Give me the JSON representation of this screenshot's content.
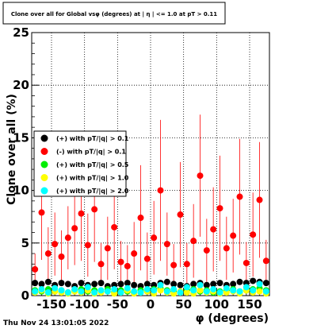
{
  "title": "Clone  over all for Global vsφ (degrees) at | η | <= 1.0 at pT > 0.11",
  "timestamp": "Thu Nov 24 13:01:05 2022",
  "chart_data": {
    "type": "scatter",
    "title": "Clone  over all for Global vsφ (degrees) at | η | <= 1.0 at pT > 0.11",
    "xlabel": "φ (degrees)",
    "ylabel": "Clone  over all (%)",
    "xlim": [
      -180,
      180
    ],
    "ylim": [
      0,
      25
    ],
    "xticks": [
      -150,
      -100,
      -50,
      0,
      50,
      100,
      150
    ],
    "yticks": [
      0,
      5,
      10,
      15,
      20,
      25
    ],
    "grid": true,
    "legend_position": "left-middle",
    "series": [
      {
        "name": "(+) with pT/|q| > 0.1",
        "color": "#000000",
        "x": [
          -175,
          -165,
          -155,
          -145,
          -135,
          -125,
          -115,
          -105,
          -95,
          -85,
          -75,
          -65,
          -55,
          -45,
          -35,
          -25,
          -15,
          -5,
          5,
          15,
          25,
          35,
          45,
          55,
          65,
          75,
          85,
          95,
          105,
          115,
          125,
          135,
          145,
          155,
          165,
          175
        ],
        "y": [
          1.2,
          1.1,
          1.3,
          1.0,
          1.2,
          1.1,
          0.9,
          1.2,
          1.0,
          1.1,
          1.2,
          0.9,
          1.0,
          1.1,
          1.2,
          1.0,
          0.9,
          1.1,
          1.0,
          1.2,
          1.3,
          1.1,
          1.0,
          0.9,
          1.1,
          1.2,
          1.0,
          1.1,
          1.2,
          1.0,
          1.1,
          1.3,
          1.2,
          1.4,
          1.3,
          1.2
        ]
      },
      {
        "name": "(-) with pT/|q| > 0.1",
        "color": "#ff0000",
        "x": [
          -175,
          -165,
          -155,
          -145,
          -135,
          -125,
          -115,
          -105,
          -95,
          -85,
          -75,
          -65,
          -55,
          -45,
          -35,
          -25,
          -15,
          -5,
          5,
          15,
          25,
          35,
          45,
          55,
          65,
          75,
          85,
          95,
          105,
          115,
          125,
          135,
          145,
          155,
          165,
          175
        ],
        "y": [
          2.5,
          7.9,
          4.0,
          4.9,
          3.7,
          5.5,
          6.4,
          7.8,
          4.8,
          8.2,
          3.0,
          4.5,
          6.5,
          3.2,
          2.8,
          4.0,
          7.4,
          3.5,
          5.5,
          10.0,
          4.9,
          2.9,
          7.7,
          3.0,
          5.2,
          11.4,
          4.3,
          6.3,
          8.3,
          4.5,
          5.7,
          9.4,
          3.1,
          5.8,
          9.1,
          3.3
        ]
      },
      {
        "name": "(+) with pT/|q| > 0.5",
        "color": "#00ee00",
        "x": [
          -175,
          -165,
          -155,
          -145,
          -135,
          -125,
          -115,
          -105,
          -95,
          -85,
          -75,
          -65,
          -55,
          -45,
          -35,
          -25,
          -15,
          -5,
          5,
          15,
          25,
          35,
          45,
          55,
          65,
          75,
          85,
          95,
          105,
          115,
          125,
          135,
          145,
          155,
          165,
          175
        ],
        "y": [
          0.5,
          0.4,
          0.6,
          0.4,
          0.5,
          0.3,
          0.5,
          0.6,
          0.4,
          0.5,
          0.4,
          0.6,
          0.3,
          0.5,
          0.4,
          0.3,
          0.5,
          0.4,
          0.6,
          0.7,
          0.5,
          0.4,
          0.3,
          0.5,
          0.6,
          0.4,
          0.5,
          0.3,
          0.4,
          0.5,
          0.6,
          0.4,
          0.5,
          0.6,
          0.7,
          0.5
        ]
      },
      {
        "name": "(+) with pT/|q| > 1.0",
        "color": "#ffff00",
        "x": [
          -175,
          -165,
          -155,
          -145,
          -135,
          -125,
          -115,
          -105,
          -95,
          -85,
          -75,
          -65,
          -55,
          -45,
          -35,
          -25,
          -15,
          -5,
          5,
          15,
          25,
          35,
          45,
          55,
          65,
          75,
          85,
          95,
          105,
          115,
          125,
          135,
          145,
          155,
          165,
          175
        ],
        "y": [
          0.3,
          0.5,
          0.2,
          0.4,
          0.3,
          0.2,
          0.4,
          0.3,
          0.5,
          0.2,
          0.3,
          0.4,
          0.2,
          0.3,
          0.5,
          0.2,
          0.3,
          0.4,
          0.2,
          0.5,
          0.3,
          0.2,
          0.4,
          0.3,
          0.2,
          0.5,
          0.3,
          0.4,
          0.2,
          0.3,
          0.4,
          0.2,
          0.5,
          0.3,
          0.4,
          0.2
        ]
      },
      {
        "name": "(+) with pT/|q| > 2.0",
        "color": "#00ffff",
        "x": [
          -175,
          -165,
          -155,
          -145,
          -135,
          -125,
          -115,
          -105,
          -95,
          -85,
          -75,
          -65,
          -55,
          -45,
          -35,
          -25,
          -15,
          -5,
          5,
          15,
          25,
          35,
          45,
          55,
          65,
          75,
          85,
          95,
          105,
          115,
          125,
          135,
          145,
          155,
          165,
          175
        ],
        "y": [
          0.4,
          0.6,
          0.3,
          0.7,
          0.5,
          0.3,
          0.6,
          0.4,
          0.8,
          0.3,
          0.5,
          0.4,
          0.6,
          0.3,
          0.7,
          0.4,
          0.3,
          0.6,
          0.5,
          1.0,
          0.4,
          0.6,
          0.3,
          0.8,
          0.5,
          1.0,
          0.4,
          0.6,
          0.3,
          0.7,
          0.5,
          0.4,
          0.8,
          0.5,
          1.1,
          0.4
        ]
      }
    ],
    "red_error_bars": [
      1.5,
      4.5,
      2.5,
      3.0,
      2.5,
      3.0,
      3.5,
      4.5,
      3.0,
      5.0,
      2.0,
      3.0,
      4.0,
      2.0,
      2.0,
      3.0,
      5.0,
      2.5,
      3.5,
      6.7,
      3.0,
      2.0,
      5.0,
      2.0,
      3.5,
      5.8,
      3.0,
      4.0,
      5.0,
      3.0,
      3.5,
      5.5,
      2.0,
      4.0,
      5.5,
      2.0
    ]
  }
}
